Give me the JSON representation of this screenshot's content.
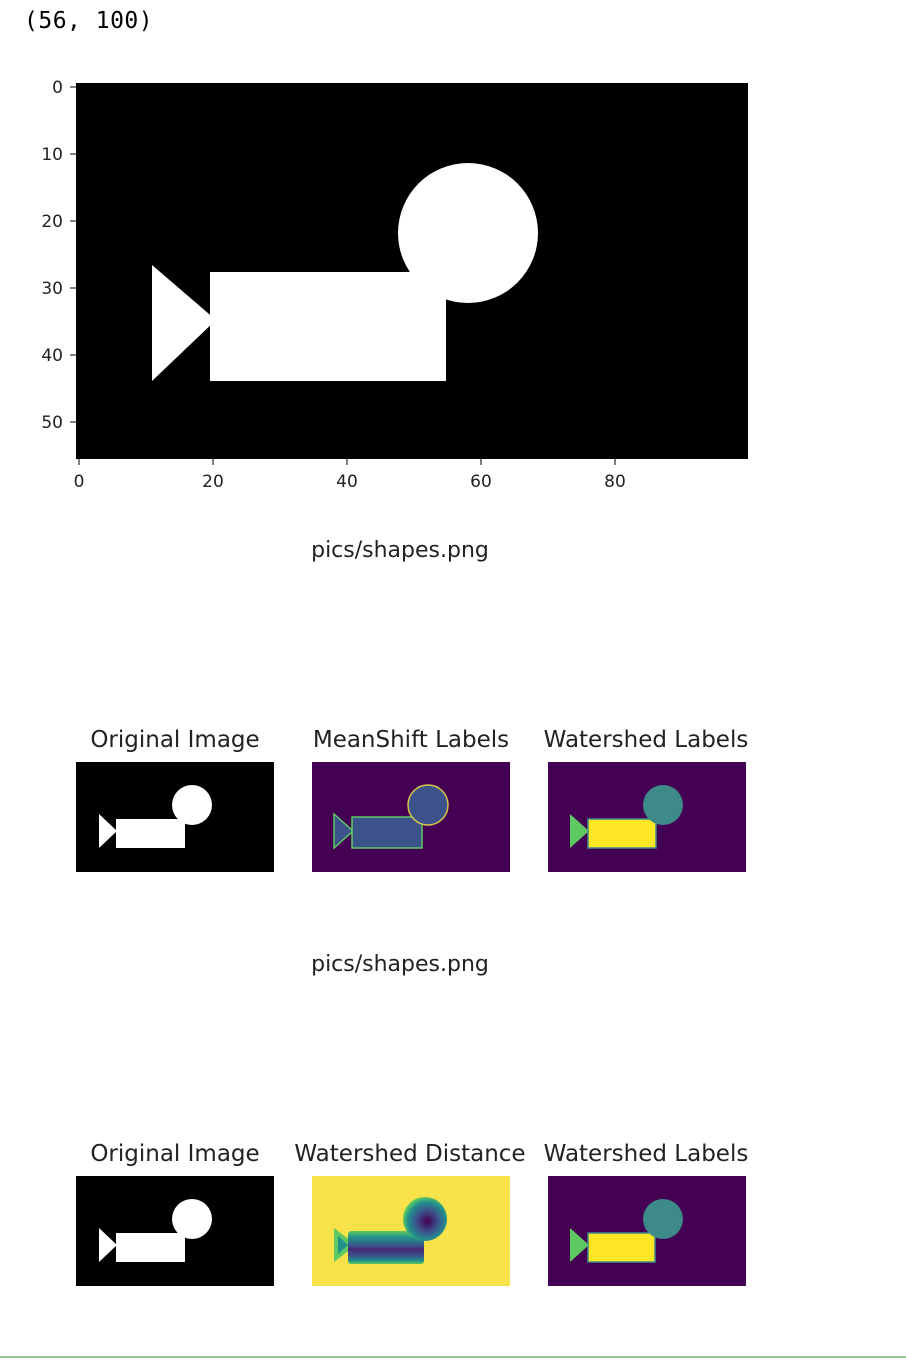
{
  "output": {
    "shape_text": "(56, 100)",
    "filename_caption_1": "pics/shapes.png",
    "filename_caption_2": "pics/shapes.png"
  },
  "main_plot": {
    "x_ticks": [
      "0",
      "20",
      "40",
      "60",
      "80"
    ],
    "y_ticks": [
      "0",
      "10",
      "20",
      "30",
      "40",
      "50"
    ]
  },
  "row1": {
    "titles": [
      "Original Image",
      "MeanShift Labels",
      "Watershed Labels"
    ]
  },
  "row2": {
    "titles": [
      "Original Image",
      "Watershed Distance",
      "Watershed Labels"
    ]
  },
  "colors": {
    "background": "#000000",
    "foreground": "#ffffff",
    "viridis_low": "#440154",
    "viridis_blue": "#3b528b",
    "viridis_teal": "#3e8a89",
    "viridis_green": "#5ec962",
    "viridis_yellow": "#fde725"
  }
}
